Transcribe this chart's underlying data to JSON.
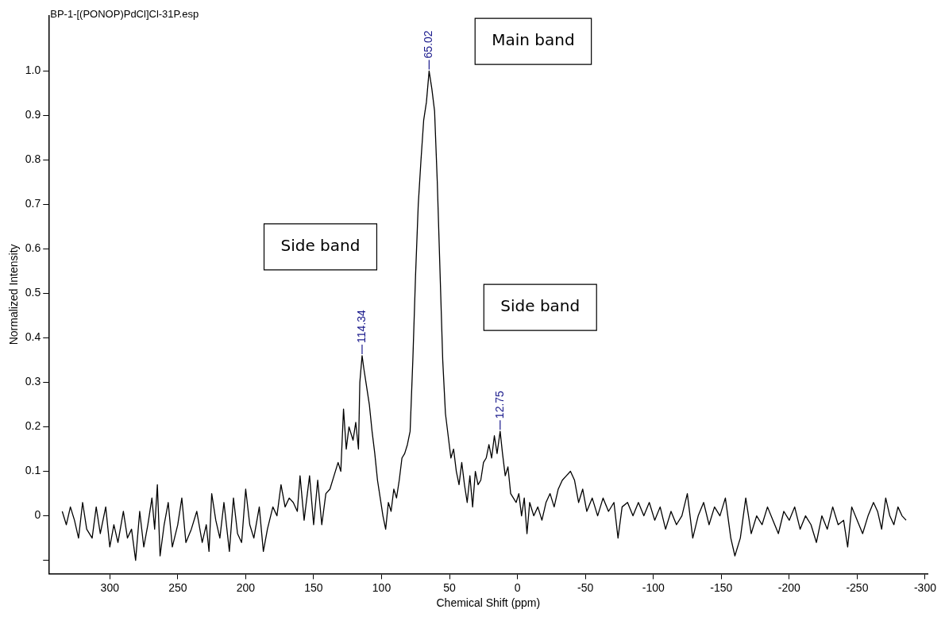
{
  "chart_data": {
    "type": "line",
    "title": "BP-1-[(PONOP)PdCl]Cl-31P.esp",
    "xlabel": "Chemical Shift (ppm)",
    "ylabel": "Normalized Intensity",
    "x": [
      335,
      332,
      329,
      326,
      323,
      320,
      317,
      313,
      310,
      307,
      303,
      300,
      297,
      294,
      290,
      287,
      284,
      281,
      278,
      275,
      272,
      269,
      267,
      265,
      263,
      260,
      257,
      254,
      250,
      247,
      244,
      240,
      236,
      232,
      229,
      227,
      225,
      222,
      219,
      216,
      212,
      209,
      206,
      203,
      200,
      197,
      194,
      190,
      187,
      184,
      180,
      177,
      174,
      171,
      168,
      165,
      162,
      160,
      157,
      153,
      150,
      147,
      144,
      141,
      138,
      135,
      132,
      130,
      128,
      126,
      124,
      121,
      119,
      117,
      116,
      114.34,
      113,
      111,
      109,
      107,
      105,
      103,
      101,
      99,
      97,
      95,
      93,
      91,
      89,
      87,
      85,
      83,
      81,
      79,
      77,
      75,
      73,
      71,
      69,
      67,
      65.02,
      63,
      61,
      59,
      57,
      55,
      53,
      51,
      49,
      47,
      45,
      43,
      41,
      39,
      37,
      35,
      33,
      31,
      29,
      27,
      25,
      23,
      21,
      19,
      17,
      15,
      12.75,
      11,
      9,
      7,
      5,
      3,
      1,
      -1,
      -3,
      -5,
      -7,
      -9,
      -12,
      -15,
      -18,
      -21,
      -24,
      -27,
      -30,
      -33,
      -36,
      -39,
      -42,
      -45,
      -48,
      -51,
      -55,
      -59,
      -63,
      -67,
      -71,
      -74,
      -77,
      -81,
      -85,
      -89,
      -93,
      -97,
      -101,
      -105,
      -109,
      -113,
      -117,
      -121,
      -125,
      -129,
      -133,
      -137,
      -141,
      -145,
      -149,
      -153,
      -157,
      -160,
      -164,
      -168,
      -172,
      -176,
      -180,
      -184,
      -188,
      -192,
      -196,
      -200,
      -204,
      -208,
      -212,
      -216,
      -220,
      -224,
      -228,
      -232,
      -236,
      -240,
      -243,
      -246,
      -250,
      -254,
      -258,
      -262,
      -265,
      -268,
      -271,
      -274,
      -277,
      -280,
      -283,
      -286
    ],
    "series": [
      {
        "color": "#000000",
        "values": [
          0.01,
          -0.02,
          0.02,
          -0.01,
          -0.05,
          0.03,
          -0.03,
          -0.05,
          0.02,
          -0.04,
          0.02,
          -0.07,
          -0.02,
          -0.06,
          0.01,
          -0.05,
          -0.03,
          -0.1,
          0.01,
          -0.07,
          -0.02,
          0.04,
          -0.03,
          0.07,
          -0.09,
          -0.02,
          0.03,
          -0.07,
          -0.02,
          0.04,
          -0.06,
          -0.03,
          0.01,
          -0.06,
          -0.02,
          -0.08,
          0.05,
          -0.01,
          -0.05,
          0.03,
          -0.08,
          0.04,
          -0.04,
          -0.06,
          0.06,
          -0.02,
          -0.05,
          0.02,
          -0.08,
          -0.03,
          0.02,
          0.0,
          0.07,
          0.02,
          0.04,
          0.03,
          0.01,
          0.09,
          -0.01,
          0.09,
          -0.02,
          0.08,
          -0.02,
          0.05,
          0.06,
          0.09,
          0.12,
          0.1,
          0.24,
          0.15,
          0.2,
          0.17,
          0.21,
          0.15,
          0.3,
          0.36,
          0.33,
          0.29,
          0.25,
          0.19,
          0.14,
          0.08,
          0.04,
          0.0,
          -0.03,
          0.03,
          0.01,
          0.06,
          0.04,
          0.08,
          0.13,
          0.14,
          0.16,
          0.19,
          0.35,
          0.54,
          0.7,
          0.8,
          0.89,
          0.93,
          1.0,
          0.96,
          0.91,
          0.75,
          0.55,
          0.35,
          0.23,
          0.18,
          0.13,
          0.15,
          0.1,
          0.07,
          0.12,
          0.07,
          0.03,
          0.09,
          0.02,
          0.1,
          0.07,
          0.08,
          0.12,
          0.13,
          0.16,
          0.13,
          0.18,
          0.14,
          0.19,
          0.14,
          0.09,
          0.11,
          0.05,
          0.04,
          0.03,
          0.05,
          0.0,
          0.04,
          -0.04,
          0.03,
          0.0,
          0.02,
          -0.01,
          0.03,
          0.05,
          0.02,
          0.06,
          0.08,
          0.09,
          0.1,
          0.08,
          0.03,
          0.06,
          0.01,
          0.04,
          0.0,
          0.04,
          0.01,
          0.03,
          -0.05,
          0.02,
          0.03,
          0.0,
          0.03,
          0.0,
          0.03,
          -0.01,
          0.02,
          -0.03,
          0.01,
          -0.02,
          0.0,
          0.05,
          -0.05,
          0.0,
          0.03,
          -0.02,
          0.02,
          0.0,
          0.04,
          -0.05,
          -0.09,
          -0.05,
          0.04,
          -0.04,
          0.0,
          -0.02,
          0.02,
          -0.01,
          -0.04,
          0.01,
          -0.01,
          0.02,
          -0.03,
          0.0,
          -0.02,
          -0.06,
          0.0,
          -0.03,
          0.02,
          -0.02,
          -0.01,
          -0.07,
          0.02,
          -0.01,
          -0.04,
          0.0,
          0.03,
          0.01,
          -0.03,
          0.04,
          0.0,
          -0.02,
          0.02,
          0.0,
          -0.01
        ]
      }
    ],
    "xlim": [
      345,
      -302
    ],
    "xticks": [
      300,
      250,
      200,
      150,
      100,
      50,
      0,
      -50,
      -100,
      -150,
      -200,
      -250,
      -300
    ],
    "ylim": [
      -0.13,
      1.125
    ],
    "yticks": [
      {
        "value": -0.1,
        "label": null
      },
      0,
      0.1,
      0.2,
      0.3,
      0.4,
      0.5,
      0.6,
      0.7,
      0.8,
      0.9,
      {
        "value": 1,
        "label": "1.0"
      }
    ],
    "annotations": [
      {
        "text": "65.02",
        "x": 65.02,
        "y": 1.0
      },
      {
        "text": "114.34",
        "x": 114.34,
        "y": 0.36
      },
      {
        "text": "12.75",
        "x": 12.75,
        "y": 0.19
      },
      "Main band",
      "Side band",
      "Side band"
    ],
    "grid": false,
    "legend": false,
    "marker": "none",
    "line_style": "solid"
  }
}
